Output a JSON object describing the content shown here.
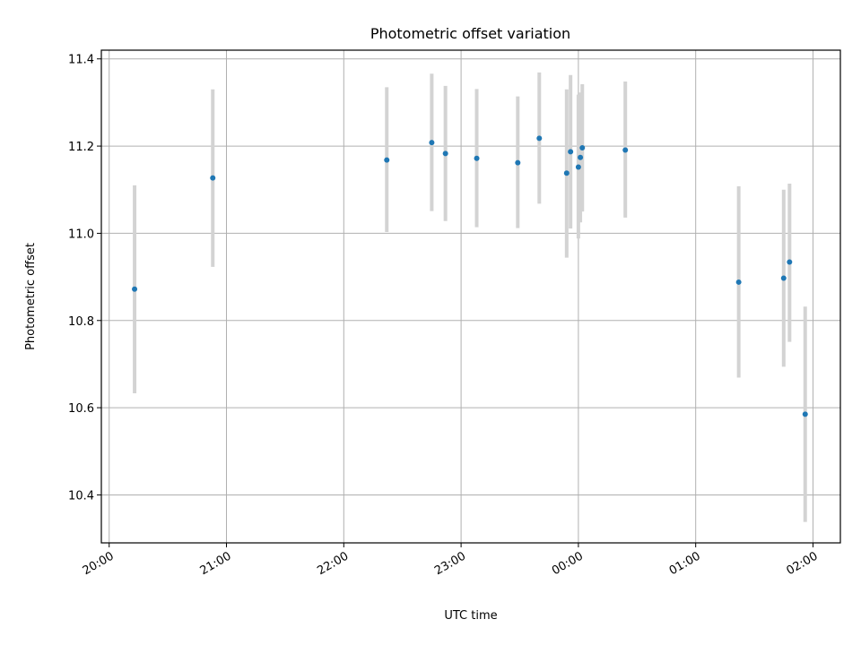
{
  "chart_data": {
    "type": "scatter",
    "title": "Photometric offset variation",
    "xlabel": "UTC time",
    "ylabel": "Photometric offset",
    "xlim": [
      "19:56",
      "02:14"
    ],
    "ylim": [
      10.29,
      11.42
    ],
    "grid": true,
    "x_ticks": [
      {
        "time": "20:00",
        "label": "20:00"
      },
      {
        "time": "21:00",
        "label": "21:00"
      },
      {
        "time": "22:00",
        "label": "22:00"
      },
      {
        "time": "23:00",
        "label": "23:00"
      },
      {
        "time": "00:00",
        "label": "00:00"
      },
      {
        "time": "01:00",
        "label": "01:00"
      },
      {
        "time": "02:00",
        "label": "02:00"
      }
    ],
    "y_ticks": [
      {
        "value": 10.4,
        "label": "10.4"
      },
      {
        "value": 10.6,
        "label": "10.6"
      },
      {
        "value": 10.8,
        "label": "10.8"
      },
      {
        "value": 11.0,
        "label": "11.0"
      },
      {
        "value": 11.2,
        "label": "11.2"
      },
      {
        "value": 11.4,
        "label": "11.4"
      }
    ],
    "points": [
      {
        "time": "20:13",
        "y": 10.872,
        "err_low": 10.633,
        "err_high": 11.11
      },
      {
        "time": "20:53",
        "y": 11.127,
        "err_low": 10.923,
        "err_high": 11.33
      },
      {
        "time": "22:22",
        "y": 11.168,
        "err_low": 11.003,
        "err_high": 11.335
      },
      {
        "time": "22:45",
        "y": 11.208,
        "err_low": 11.051,
        "err_high": 11.366
      },
      {
        "time": "22:52",
        "y": 11.183,
        "err_low": 11.028,
        "err_high": 11.338
      },
      {
        "time": "23:08",
        "y": 11.172,
        "err_low": 11.014,
        "err_high": 11.331
      },
      {
        "time": "23:29",
        "y": 11.162,
        "err_low": 11.012,
        "err_high": 11.314
      },
      {
        "time": "23:40",
        "y": 11.218,
        "err_low": 11.068,
        "err_high": 11.369
      },
      {
        "time": "23:54",
        "y": 11.138,
        "err_low": 10.944,
        "err_high": 11.33
      },
      {
        "time": "23:56",
        "y": 11.187,
        "err_low": 11.011,
        "err_high": 11.363
      },
      {
        "time": "00:00",
        "y": 11.152,
        "err_low": 10.988,
        "err_high": 11.318
      },
      {
        "time": "00:01",
        "y": 11.174,
        "err_low": 11.025,
        "err_high": 11.323
      },
      {
        "time": "00:02",
        "y": 11.196,
        "err_low": 11.05,
        "err_high": 11.342
      },
      {
        "time": "00:24",
        "y": 11.191,
        "err_low": 11.036,
        "err_high": 11.348
      },
      {
        "time": "01:22",
        "y": 10.888,
        "err_low": 10.669,
        "err_high": 11.108
      },
      {
        "time": "01:45",
        "y": 10.897,
        "err_low": 10.694,
        "err_high": 11.1
      },
      {
        "time": "01:48",
        "y": 10.934,
        "err_low": 10.751,
        "err_high": 11.114
      },
      {
        "time": "01:56",
        "y": 10.585,
        "err_low": 10.338,
        "err_high": 10.832
      }
    ],
    "colors": {
      "point": "#1f77b4",
      "errorbar": "#d3d3d3",
      "grid": "#b0b0b0",
      "axis": "#000000"
    }
  }
}
